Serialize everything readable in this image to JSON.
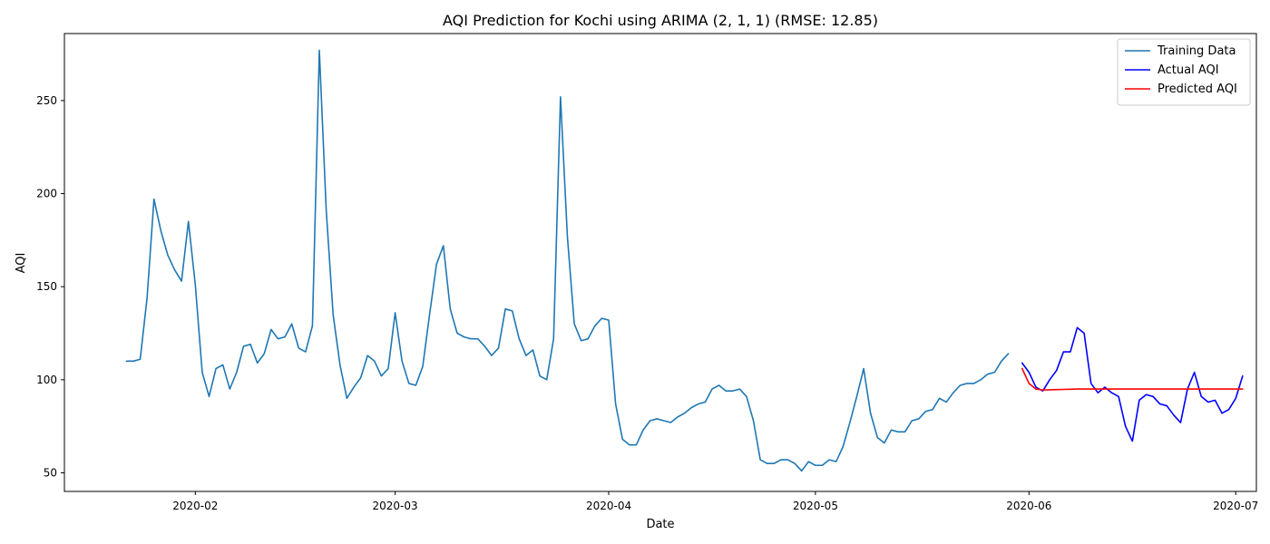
{
  "chart_data": {
    "type": "line",
    "title": "AQI Prediction for Kochi using ARIMA (2, 1, 1) (RMSE: 12.85)",
    "xlabel": "Date",
    "ylabel": "AQI",
    "xlim": [
      "2020-01-13",
      "2020-07-04"
    ],
    "ylim": [
      40,
      286
    ],
    "x_ticks": [
      "2020-02",
      "2020-03",
      "2020-04",
      "2020-05",
      "2020-06",
      "2020-07"
    ],
    "x_tick_dates": [
      "2020-02-01",
      "2020-03-01",
      "2020-04-01",
      "2020-05-01",
      "2020-06-01",
      "2020-07-01"
    ],
    "y_ticks": [
      50,
      100,
      150,
      200,
      250
    ],
    "grid": false,
    "legend_position": "top-right",
    "series": [
      {
        "name": "Training Data",
        "color": "#1f77b4",
        "start_date": "2020-01-22",
        "values": [
          110,
          110,
          111,
          144,
          197,
          180,
          167,
          159,
          153,
          185,
          151,
          104,
          91,
          106,
          108,
          95,
          104,
          118,
          119,
          109,
          114,
          127,
          122,
          123,
          130,
          117,
          115,
          129,
          277,
          191,
          135,
          108,
          90,
          96,
          101,
          113,
          110,
          102,
          106,
          136,
          110,
          98,
          97,
          107,
          135,
          162,
          172,
          138,
          125,
          123,
          122,
          122,
          118,
          113,
          117,
          138,
          137,
          122,
          113,
          116,
          102,
          100,
          122,
          252,
          177,
          130,
          121,
          122,
          129,
          133,
          132,
          87,
          68,
          65,
          65,
          73,
          78,
          79,
          78,
          77,
          80,
          82,
          85,
          87,
          88,
          95,
          97,
          94,
          94,
          95,
          91,
          78,
          57,
          55,
          55,
          57,
          57,
          55,
          51,
          56,
          54,
          54,
          57,
          56,
          64,
          77,
          91,
          106,
          82,
          69,
          66,
          73,
          72,
          72,
          78,
          79,
          83,
          84,
          90,
          88,
          93,
          97,
          98,
          98,
          100,
          103,
          104,
          110,
          114
        ]
      },
      {
        "name": "Actual AQI",
        "color": "#0000ff",
        "start_date": "2020-05-31",
        "values": [
          109,
          104,
          96,
          94,
          100,
          105,
          115,
          115,
          128,
          125,
          98,
          93,
          96,
          93,
          91,
          75,
          67,
          89,
          92,
          91,
          87,
          86,
          81,
          77,
          95,
          104,
          91,
          88,
          89,
          82,
          84,
          90,
          102
        ]
      },
      {
        "name": "Predicted AQI",
        "color": "#ff0000",
        "start_date": "2020-05-31",
        "values": [
          106,
          98,
          95,
          94.5,
          94.6,
          94.7,
          94.8,
          94.9,
          95,
          95,
          95,
          95,
          95,
          95,
          95,
          95,
          95,
          95,
          95,
          95,
          95,
          95,
          95,
          95,
          95,
          95,
          95,
          95,
          95,
          95,
          95,
          95,
          95
        ]
      }
    ]
  }
}
